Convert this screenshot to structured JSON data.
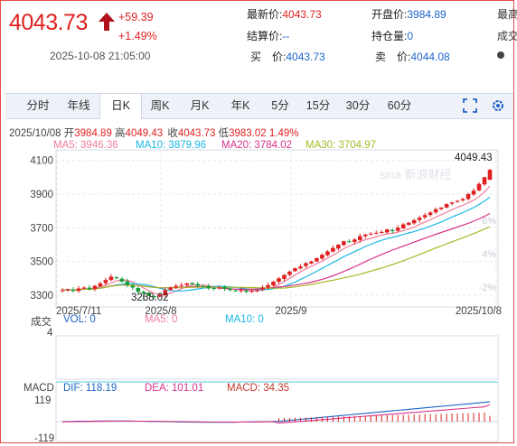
{
  "quote": {
    "price": "4043.73",
    "change": "+59.39",
    "change_pct": "+1.49%",
    "datetime": "2025-10-08 21:05:00"
  },
  "info": {
    "latest_label": "最新价:",
    "latest_value": "4043.73",
    "open_label": "开盘价:",
    "open_value": "3984.89",
    "high_label": "最高",
    "settle_label": "结算价:",
    "settle_value": "--",
    "oi_label": "持仓量:",
    "oi_value": "0",
    "vol_label": "成交",
    "buy_label": "买　价:",
    "buy_value": "4043.73",
    "sell_label": "卖　价:",
    "sell_value": "4044.08"
  },
  "tabs": [
    "分时",
    "年线",
    "日K",
    "周K",
    "月K",
    "年K",
    "5分",
    "15分",
    "30分",
    "60分"
  ],
  "active_tab": "日K",
  "ohlc_line": {
    "date": "2025/10/08",
    "open_label": "开",
    "open": "3984.89",
    "high_label": "高",
    "high": "4049.43",
    "close_label": "收",
    "close": "4043.73",
    "low_label": "低",
    "low": "3983.02",
    "pct": "1.49%"
  },
  "ma_legend": {
    "ma5": "MA5: 3946.36",
    "ma10": "MA10: 3879.96",
    "ma20": "MA20: 3784.02",
    "ma30": "MA30: 3704.97"
  },
  "volume_panel": {
    "title": "成交",
    "vol": "VOL: 0",
    "ma5": "MA5: 0",
    "ma10": "MA10: 0",
    "axis_top": "4"
  },
  "macd_panel": {
    "title": "MACD",
    "dif": "DIF: 118.19",
    "dea": "DEA: 101.01",
    "macd": "MACD: 34.35",
    "axis_top": "119",
    "axis_bottom": "-119"
  },
  "watermark": "sina 新浪财经",
  "colors": {
    "up": "#e02020",
    "down": "#1a9b3a",
    "ma5": "#f07c9a",
    "ma10": "#1ab8e6",
    "ma20": "#d9338a",
    "ma30": "#a8b828",
    "accent": "#1e64c8"
  },
  "chart_data": {
    "type": "candlestick",
    "x_tick_labels": [
      "2025/7/11",
      "2025/8",
      "2025/9",
      "2025/10/8"
    ],
    "y_ticks": [
      3300,
      3500,
      3700,
      3900,
      4100
    ],
    "y_right_ticks": [
      "6%",
      "4%",
      "2%",
      "-2%"
    ],
    "ylim": [
      3230,
      4130
    ],
    "annotations": {
      "max": "4049.43",
      "min": "3268.02"
    },
    "grid": true,
    "series_close": [
      3330,
      3335,
      3325,
      3340,
      3345,
      3335,
      3355,
      3370,
      3390,
      3410,
      3400,
      3380,
      3360,
      3345,
      3320,
      3310,
      3295,
      3290,
      3300,
      3330,
      3345,
      3355,
      3360,
      3370,
      3365,
      3355,
      3350,
      3340,
      3340,
      3345,
      3338,
      3330,
      3325,
      3330,
      3320,
      3325,
      3330,
      3345,
      3360,
      3380,
      3400,
      3420,
      3440,
      3460,
      3470,
      3490,
      3500,
      3520,
      3540,
      3560,
      3580,
      3600,
      3620,
      3615,
      3630,
      3650,
      3660,
      3665,
      3670,
      3675,
      3690,
      3680,
      3700,
      3720,
      3730,
      3745,
      3760,
      3775,
      3790,
      3810,
      3820,
      3840,
      3850,
      3860,
      3870,
      3900,
      3920,
      3960,
      4000,
      4043.73
    ],
    "ma5_end": 3946.36,
    "ma10_end": 3879.96,
    "ma20_end": 3784.02,
    "ma30_end": 3704.97,
    "macd": {
      "dif": 118.19,
      "dea": 101.01,
      "macd": 34.35
    }
  }
}
